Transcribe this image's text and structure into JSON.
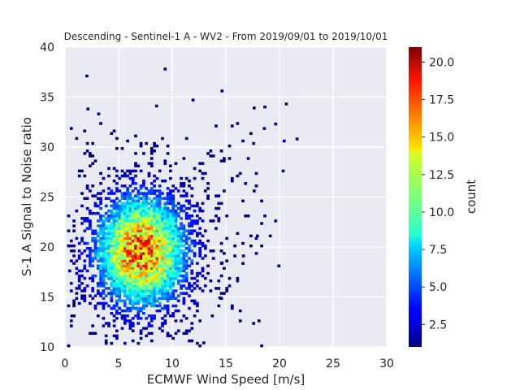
{
  "chart_data": {
    "type": "heatmap",
    "title": "Descending - Sentinel-1 A - WV2 - From 2019/09/01 to 2019/10/01",
    "xlabel": "ECMWF Wind Speed [m/s]",
    "ylabel": "S-1 A Signal to Noise ratio",
    "xlim": [
      0,
      30
    ],
    "ylim": [
      10,
      40
    ],
    "x_ticks": [
      "0",
      "5",
      "10",
      "15",
      "20",
      "25",
      "30"
    ],
    "y_ticks": [
      "10",
      "15",
      "20",
      "25",
      "30",
      "35",
      "40"
    ],
    "grid": true,
    "bin_size": [
      0.25,
      0.25
    ],
    "colorbar": {
      "label": "count",
      "range": [
        1,
        21
      ],
      "ticks": [
        "2.5",
        "5.0",
        "7.5",
        "10.0",
        "12.5",
        "15.0",
        "17.5",
        "20.0"
      ],
      "colormap": "jet"
    },
    "distribution": {
      "peak_x": 7.0,
      "peak_y": 19.5,
      "peak_count": 21,
      "x_spread": 2.8,
      "y_spread": 3.6,
      "data_extent_x": [
        0.2,
        21.5
      ],
      "data_extent_y": [
        10.0,
        38.0
      ]
    },
    "outliers": [
      {
        "x": 9.2,
        "y": 37.7
      },
      {
        "x": 1.9,
        "y": 37.0
      },
      {
        "x": 14.5,
        "y": 35.5
      },
      {
        "x": 20.5,
        "y": 34.2
      },
      {
        "x": 8.4,
        "y": 34.0
      },
      {
        "x": 11.8,
        "y": 34.6
      },
      {
        "x": 17.5,
        "y": 33.8
      },
      {
        "x": 18.5,
        "y": 33.9
      },
      {
        "x": 2.0,
        "y": 33.7
      },
      {
        "x": 3.0,
        "y": 33.2
      },
      {
        "x": 19.5,
        "y": 32.2
      },
      {
        "x": 21.5,
        "y": 30.7
      },
      {
        "x": 20.3,
        "y": 30.5
      },
      {
        "x": 20.2,
        "y": 27.5
      },
      {
        "x": 17.5,
        "y": 25.5
      },
      {
        "x": 18.5,
        "y": 23.0
      },
      {
        "x": 19.5,
        "y": 22.5
      },
      {
        "x": 17.8,
        "y": 21.0
      },
      {
        "x": 19.0,
        "y": 21.0
      },
      {
        "x": 17.2,
        "y": 20.0
      },
      {
        "x": 19.8,
        "y": 18.0
      },
      {
        "x": 16.5,
        "y": 19.0
      },
      {
        "x": 14.5,
        "y": 18.3
      },
      {
        "x": 14.3,
        "y": 14.8
      },
      {
        "x": 13.6,
        "y": 13.0
      },
      {
        "x": 12.8,
        "y": 10.3
      },
      {
        "x": 0.2,
        "y": 20.0
      },
      {
        "x": 0.2,
        "y": 23.0
      },
      {
        "x": 0.3,
        "y": 17.5
      },
      {
        "x": 0.5,
        "y": 13.0
      }
    ]
  }
}
